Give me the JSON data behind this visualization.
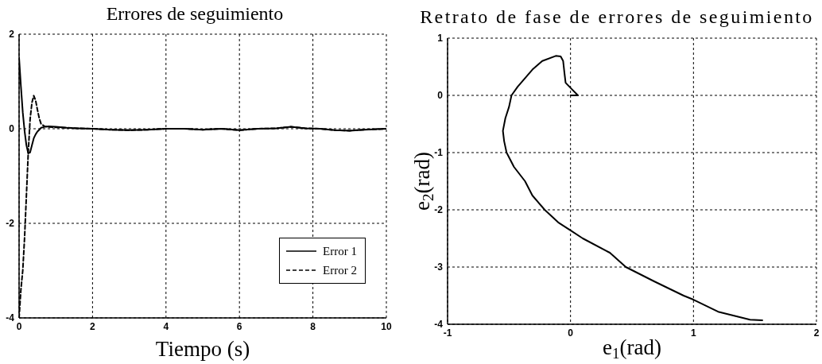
{
  "chart_data": [
    {
      "type": "line",
      "title": "Errores de seguimiento",
      "xlabel": "Tiempo (s)",
      "x": [
        0,
        0.05,
        0.1,
        0.15,
        0.2,
        0.25,
        0.3,
        0.35,
        0.4,
        0.45,
        0.5,
        0.55,
        0.6,
        0.7,
        0.8,
        1,
        1.3,
        1.6,
        2,
        2.5,
        3,
        3.5,
        4,
        4.5,
        5,
        5.5,
        6,
        6.5,
        7,
        7.4,
        7.8,
        8.2,
        8.6,
        9,
        9.4,
        10
      ],
      "xlim": [
        0,
        10
      ],
      "xticks": [
        0,
        2,
        4,
        6,
        8,
        10
      ],
      "ylim": [
        -4,
        2
      ],
      "yticks": [
        -4,
        -2,
        0,
        2
      ],
      "grid": true,
      "legend": "bottom right",
      "marker": "none",
      "series": [
        {
          "name": "Error 1",
          "color": "#000000",
          "line_style": "solid",
          "values": [
            1.5,
            0.9,
            0.35,
            -0.05,
            -0.35,
            -0.52,
            -0.5,
            -0.35,
            -0.2,
            -0.12,
            -0.06,
            -0.02,
            0.02,
            0.04,
            0.05,
            0.04,
            0.02,
            0.01,
            0,
            -0.02,
            -0.03,
            -0.02,
            0,
            0,
            -0.02,
            0,
            -0.03,
            0,
            0.01,
            0.04,
            0.01,
            0,
            -0.03,
            -0.04,
            -0.02,
            0
          ]
        },
        {
          "name": "Error 2",
          "color": "#000000",
          "line_style": "dashed",
          "values": [
            -4,
            -3.4,
            -3,
            -2.3,
            -1.4,
            -0.5,
            0.2,
            0.55,
            0.7,
            0.6,
            0.4,
            0.22,
            0.1,
            0.05,
            0.04,
            0.03,
            0.02,
            0.01,
            0,
            -0.02,
            -0.03,
            -0.02,
            0,
            0,
            -0.02,
            0,
            -0.03,
            0,
            0.01,
            0.04,
            0.01,
            0,
            -0.03,
            -0.04,
            -0.02,
            0
          ]
        }
      ]
    },
    {
      "type": "line",
      "title": "Retrato de fase de errores de seguimiento",
      "xlabel": "e$_{1}$(rad)",
      "ylabel": "e$_{2}$(rad)",
      "xlim": [
        -1,
        2
      ],
      "xticks": [
        -1,
        0,
        1,
        2
      ],
      "ylim": [
        -4,
        1
      ],
      "yticks": [
        -4,
        -3,
        -2,
        -1,
        0,
        1
      ],
      "grid": true,
      "marker": "none",
      "series": [
        {
          "color": "#000000",
          "line_style": "solid",
          "x": [
            1.56,
            1.46,
            1.2,
            1,
            0.92,
            0.68,
            0.45,
            0.32,
            0.1,
            0,
            -0.1,
            -0.21,
            -0.31,
            -0.37,
            -0.46,
            -0.52,
            -0.54,
            -0.55,
            -0.53,
            -0.5,
            -0.48,
            -0.43,
            -0.37,
            -0.31,
            -0.23,
            -0.12,
            -0.08,
            -0.06,
            -0.05,
            -0.04,
            0.01,
            0.06,
            0
          ],
          "values": [
            -3.93,
            -3.92,
            -3.78,
            -3.57,
            -3.5,
            -3.25,
            -3,
            -2.75,
            -2.5,
            -2.36,
            -2.22,
            -2,
            -1.75,
            -1.5,
            -1.25,
            -1,
            -0.8,
            -0.62,
            -0.4,
            -0.2,
            0,
            0.15,
            0.3,
            0.45,
            0.6,
            0.69,
            0.68,
            0.6,
            0.4,
            0.22,
            0.11,
            0,
            0
          ]
        }
      ]
    }
  ]
}
